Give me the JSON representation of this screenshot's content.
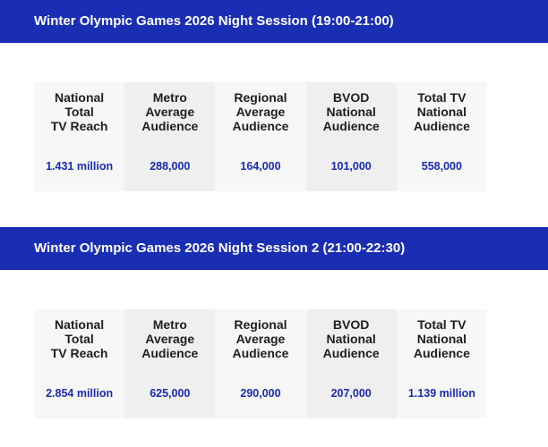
{
  "colors": {
    "banner_bg": "#1a2eb3",
    "banner_text": "#ffffff",
    "value_text": "#1a2bb0",
    "header_text": "#1e1e1e",
    "cell_light": "#f7f7f7",
    "cell_dark": "#efefef"
  },
  "sessions": [
    {
      "title": "Winter Olympic Games 2026 Night Session (19:00-21:00)",
      "headers": [
        "National\nTotal\nTV Reach",
        "Metro\nAverage\nAudience",
        "Regional\nAverage\nAudience",
        "BVOD\nNational\nAudience",
        "Total TV\nNational\nAudience"
      ],
      "values": [
        "1.431 million",
        "288,000",
        "164,000",
        "101,000",
        "558,000"
      ]
    },
    {
      "title": "Winter Olympic Games 2026 Night Session 2 (21:00-22:30)",
      "headers": [
        "National\nTotal\nTV Reach",
        "Metro\nAverage\nAudience",
        "Regional\nAverage\nAudience",
        "BVOD\nNational\nAudience",
        "Total TV\nNational\nAudience"
      ],
      "values": [
        "2.854 million",
        "625,000",
        "290,000",
        "207,000",
        "1.139 million"
      ]
    }
  ]
}
